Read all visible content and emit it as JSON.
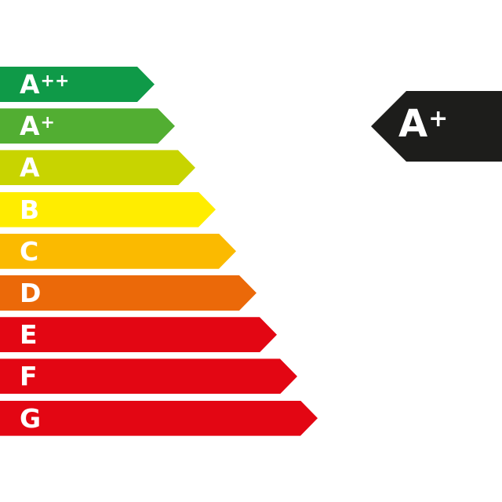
{
  "scale": [
    {
      "class": "A",
      "sup": "++",
      "color": "#0f9a48"
    },
    {
      "class": "A",
      "sup": "+",
      "color": "#52ae32"
    },
    {
      "class": "A",
      "sup": "",
      "color": "#c8d400"
    },
    {
      "class": "B",
      "sup": "",
      "color": "#ffed00"
    },
    {
      "class": "C",
      "sup": "",
      "color": "#fbba00"
    },
    {
      "class": "D",
      "sup": "",
      "color": "#eb6909"
    },
    {
      "class": "E",
      "sup": "",
      "color": "#e30613"
    },
    {
      "class": "F",
      "sup": "",
      "color": "#e30613"
    },
    {
      "class": "G",
      "sup": "",
      "color": "#e30613"
    }
  ],
  "rating": {
    "class": "A",
    "sup": "+",
    "color": "#1d1d1b"
  }
}
